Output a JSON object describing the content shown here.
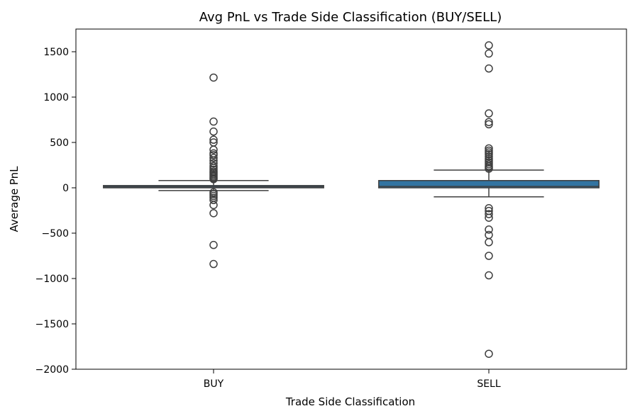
{
  "chart_data": {
    "type": "box",
    "title": "Avg PnL vs Trade Side Classification (BUY/SELL)",
    "xlabel": "Trade Side Classification",
    "ylabel": "Average PnL",
    "ylim": [
      -2000,
      1750
    ],
    "yticks": [
      1500,
      1000,
      500,
      0,
      -500,
      -1000,
      -1500,
      -2000
    ],
    "ytick_labels": [
      "1500",
      "1000",
      "500",
      "0",
      "−500",
      "−1000",
      "−1500",
      "−2000"
    ],
    "grid": false,
    "categories": [
      "BUY",
      "SELL"
    ],
    "box_color": "#3274a1",
    "edge_color": "#3f3f3f",
    "boxes": [
      {
        "category": "BUY",
        "whisker_low": -30,
        "q1": 0,
        "median": 12,
        "q3": 25,
        "whisker_high": 80,
        "outliers": [
          1215,
          730,
          620,
          530,
          500,
          420,
          380,
          360,
          330,
          300,
          270,
          240,
          220,
          200,
          180,
          165,
          150,
          135,
          120,
          105,
          95,
          -50,
          -70,
          -90,
          -110,
          -135,
          -190,
          -280,
          -630,
          -840
        ]
      },
      {
        "category": "SELL",
        "whisker_low": -100,
        "q1": 0,
        "median": 15,
        "q3": 80,
        "whisker_high": 195,
        "outliers": [
          1570,
          1480,
          1315,
          820,
          725,
          700,
          435,
          410,
          390,
          370,
          345,
          320,
          300,
          280,
          260,
          240,
          225,
          210,
          -225,
          -255,
          -290,
          -330,
          -460,
          -520,
          -600,
          -750,
          -965,
          -1830
        ]
      }
    ]
  }
}
